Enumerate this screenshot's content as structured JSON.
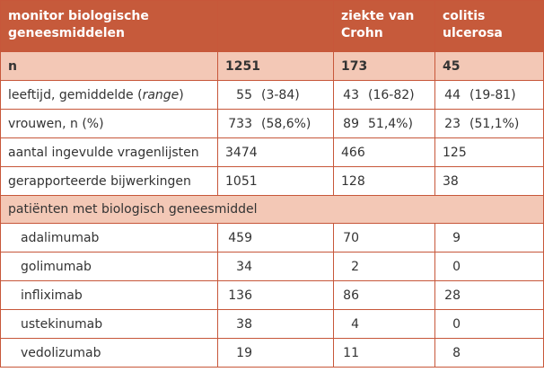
{
  "header": {
    "col0": "monitor biologische geneesmiddelen",
    "col1": "",
    "col2": "ziekte van Crohn",
    "col3": "colitis ulcerosa"
  },
  "n_row": {
    "label": "n",
    "total": "1251",
    "crohn": "173",
    "colitis": "45"
  },
  "age_row": {
    "label_prefix": "leeftijd, gemiddelde (",
    "label_italic": "range",
    "label_suffix": ")",
    "total": "55",
    "total_range": "(3-84)",
    "crohn": "43",
    "crohn_range": "(16-82)",
    "colitis": "44",
    "colitis_range": "(19-81)"
  },
  "women_row": {
    "label": "vrouwen, n (%)",
    "total": "733",
    "total_pct": "(58,6%)",
    "crohn": "89",
    "crohn_pct": "51,4%)",
    "colitis": "23",
    "colitis_pct": "(51,1%)"
  },
  "questionnaires_row": {
    "label": "aantal ingevulde vragenlijsten",
    "total": "3474",
    "crohn": "466",
    "colitis": "125"
  },
  "side_effects_row": {
    "label": "gerapporteerde bijwerkingen",
    "total": "1051",
    "crohn": "128",
    "colitis": "38"
  },
  "section": {
    "label": "patiënten met biologisch geneesmiddel"
  },
  "drugs": [
    {
      "name": "adalimumab",
      "total": "459",
      "crohn": "70",
      "colitis": "9"
    },
    {
      "name": "golimumab",
      "total": "34",
      "crohn": "2",
      "colitis": "0"
    },
    {
      "name": "infliximab",
      "total": "136",
      "crohn": "86",
      "colitis": "28"
    },
    {
      "name": "ustekinumab",
      "total": "38",
      "crohn": "4",
      "colitis": "0"
    },
    {
      "name": "vedolizumab",
      "total": "19",
      "crohn": "11",
      "colitis": "8"
    }
  ],
  "colors": {
    "header_bg": "#c65a3b",
    "band_bg": "#f3c8b6",
    "border": "#c7573a"
  }
}
